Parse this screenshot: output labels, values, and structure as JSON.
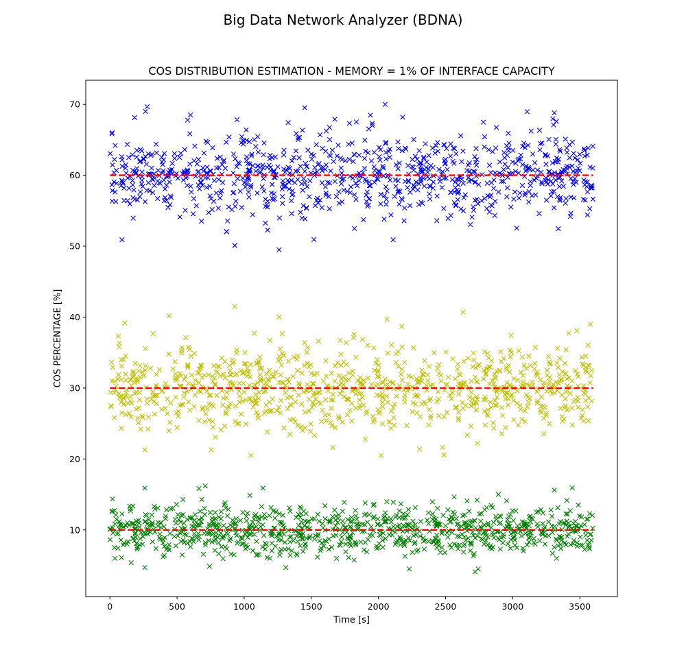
{
  "figure": {
    "suptitle": "Big Data Network Analyzer (BDNA)"
  },
  "chart_data": {
    "type": "scatter",
    "title": "COS DISTRIBUTION ESTIMATION - MEMORY = 1% OF INTERFACE CAPACITY",
    "xlabel": "Time [s]",
    "ylabel": "COS PERCENTAGE [%]",
    "xlim": [
      -180,
      3780
    ],
    "ylim": [
      0.6,
      73.4
    ],
    "xticks": [
      0,
      500,
      1000,
      1500,
      2000,
      2500,
      3000,
      3500
    ],
    "yticks": [
      10,
      20,
      30,
      40,
      50,
      60,
      70
    ],
    "grid": false,
    "legend": "none",
    "marker": "x",
    "x_range": [
      0,
      3600
    ],
    "series": [
      {
        "color": "#0000ff",
        "mean": 60,
        "spread_approx": [
          49.5,
          70
        ],
        "sample_extremes": [
          [
            2050,
            70
          ],
          [
            265,
            69
          ],
          [
            3310,
            68.8
          ],
          [
            600,
            68.5
          ],
          [
            1260,
            49.5
          ],
          [
            930,
            50.1
          ],
          [
            90,
            50.9
          ],
          [
            2110,
            50.9
          ]
        ]
      },
      {
        "color": "#bfbf00",
        "mean": 30,
        "spread_approx": [
          20.5,
          41.5
        ],
        "sample_extremes": [
          [
            930,
            41.5
          ],
          [
            2630,
            40.7
          ],
          [
            1260,
            40
          ],
          [
            3580,
            39
          ],
          [
            1050,
            20.5
          ],
          [
            2020,
            20.5
          ],
          [
            260,
            21.3
          ],
          [
            1660,
            21.6
          ]
        ]
      },
      {
        "color": "#008000",
        "mean": 10,
        "spread_approx": [
          4,
          16.2
        ],
        "sample_extremes": [
          [
            710,
            16.2
          ],
          [
            260,
            15.9
          ],
          [
            1140,
            15.9
          ],
          [
            3310,
            15.6
          ],
          [
            2720,
            4.1
          ],
          [
            2230,
            4.5
          ],
          [
            1310,
            4.7
          ],
          [
            260,
            4.7
          ]
        ]
      }
    ],
    "reference_lines": [
      {
        "y": 60,
        "color": "#ff0000",
        "style": "dashed"
      },
      {
        "y": 30,
        "color": "#ff0000",
        "style": "dashed"
      },
      {
        "y": 10,
        "color": "#ff0000",
        "style": "dashed"
      }
    ]
  }
}
